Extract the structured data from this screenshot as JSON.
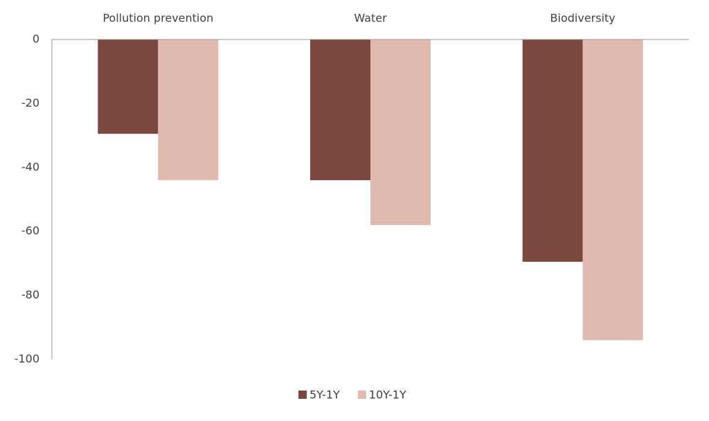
{
  "chart_data": {
    "type": "bar",
    "categories": [
      "Pollution prevention",
      "Water",
      "Biodiversity"
    ],
    "series": [
      {
        "name": "5Y-1Y",
        "color": "#7b4840",
        "values": [
          -29.5,
          -44,
          -69.5
        ]
      },
      {
        "name": "10Y-1Y",
        "color": "#e0bab0",
        "values": [
          -44,
          -58,
          -94
        ]
      }
    ],
    "ylim": [
      -100,
      0
    ],
    "yticks": [
      0,
      -20,
      -40,
      -60,
      -80,
      -100
    ],
    "grid": false,
    "legend": "bottom"
  }
}
